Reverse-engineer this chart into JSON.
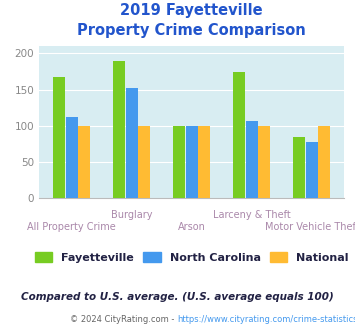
{
  "title_line1": "2019 Fayetteville",
  "title_line2": "Property Crime Comparison",
  "categories": [
    "All Property Crime",
    "Burglary",
    "Arson",
    "Larceny & Theft",
    "Motor Vehicle Theft"
  ],
  "top_labels": [
    "",
    "Burglary",
    "",
    "Larceny & Theft",
    ""
  ],
  "bot_labels": [
    "All Property Crime",
    "",
    "Arson",
    "",
    "Motor Vehicle Theft"
  ],
  "fayetteville": [
    168,
    190,
    100,
    174,
    84
  ],
  "north_carolina": [
    112,
    152,
    100,
    107,
    78
  ],
  "national": [
    100,
    100,
    100,
    100,
    100
  ],
  "fayetteville_color": "#77cc22",
  "north_carolina_color": "#4499ee",
  "national_color": "#ffbb33",
  "bg_color": "#d8edf2",
  "title_color": "#2255cc",
  "label_color": "#aa88aa",
  "ytick_color": "#888888",
  "ylim": [
    0,
    210
  ],
  "yticks": [
    0,
    50,
    100,
    150,
    200
  ],
  "footnote": "Compared to U.S. average. (U.S. average equals 100)",
  "copyright_pre": "© 2024 CityRating.com - ",
  "copyright_url": "https://www.cityrating.com/crime-statistics/",
  "footnote_color": "#222244",
  "copyright_color": "#666666",
  "copyright_url_color": "#4499ee",
  "legend_labels": [
    "Fayetteville",
    "North Carolina",
    "National"
  ],
  "legend_text_color": "#222244"
}
